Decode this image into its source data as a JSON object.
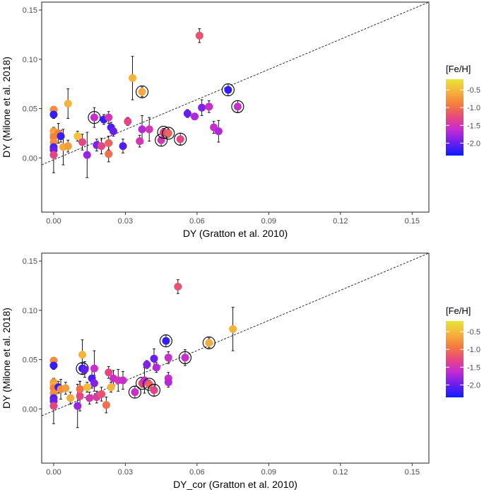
{
  "colors": {
    "panel_border": "#333333",
    "tick": "#333333",
    "refline": "#000000",
    "errbar": "#000000",
    "ring": "#000000"
  },
  "colorbar": {
    "stops": [
      "#0d1cff",
      "#6a1fee",
      "#c42bd3",
      "#e6487f",
      "#f47b3e",
      "#f6b23c",
      "#e6e635"
    ]
  },
  "chart_data": [
    {
      "type": "scatter",
      "xlabel": "DY (Gratton et al. 2010)",
      "ylabel": "DY (Milone et al. 2018)",
      "xlim": [
        -0.005,
        0.157
      ],
      "ylim": [
        -0.055,
        0.158
      ],
      "xticks": [
        0.0,
        0.03,
        0.06,
        0.09,
        0.12,
        0.15
      ],
      "xtick_labels": [
        "0.00",
        "0.03",
        "0.06",
        "0.09",
        "0.12",
        "0.15"
      ],
      "yticks": [
        0.0,
        0.05,
        0.1,
        0.15
      ],
      "ytick_labels": [
        "0.00",
        "0.05",
        "0.10",
        "0.15"
      ],
      "reference_line": {
        "x": [
          -0.005,
          0.157
        ],
        "y": [
          -0.007,
          0.158
        ],
        "style": "dashed"
      },
      "legend": {
        "title": "[Fe/H]",
        "labels": [
          "-0.5",
          "-1.0",
          "-1.5",
          "-2.0"
        ],
        "values": [
          -0.5,
          -1.0,
          -1.5,
          -2.0
        ],
        "range": [
          -2.35,
          -0.2
        ]
      },
      "points": [
        {
          "x": 0.0,
          "y": 0.049,
          "err": 0.003,
          "fe": -0.8
        },
        {
          "x": 0.0,
          "y": 0.044,
          "err": 0.004,
          "fe": -2.2
        },
        {
          "x": 0.0,
          "y": 0.027,
          "err": 0.004,
          "fe": -0.7
        },
        {
          "x": 0.0,
          "y": 0.024,
          "err": 0.004,
          "fe": -0.6
        },
        {
          "x": 0.0,
          "y": 0.021,
          "err": 0.003,
          "fe": -0.9
        },
        {
          "x": 0.0,
          "y": 0.016,
          "err": 0.004,
          "fe": -0.8
        },
        {
          "x": 0.0,
          "y": 0.011,
          "err": 0.005,
          "fe": -2.1
        },
        {
          "x": 0.0,
          "y": 0.008,
          "err": 0.004,
          "fe": -2.0
        },
        {
          "x": 0.0,
          "y": 0.003,
          "err": 0.018,
          "fe": -1.3
        },
        {
          "x": 0.002,
          "y": 0.025,
          "err": 0.01,
          "fe": -0.9
        },
        {
          "x": 0.003,
          "y": 0.022,
          "err": 0.006,
          "fe": -2.2
        },
        {
          "x": 0.004,
          "y": 0.011,
          "err": 0.018,
          "fe": -0.6
        },
        {
          "x": 0.006,
          "y": 0.055,
          "err": 0.015,
          "fe": -0.55
        },
        {
          "x": 0.006,
          "y": 0.012,
          "err": 0.006,
          "fe": -0.7
        },
        {
          "x": 0.01,
          "y": 0.022,
          "err": 0.005,
          "fe": -0.45
        },
        {
          "x": 0.012,
          "y": 0.016,
          "err": 0.008,
          "fe": -1.3
        },
        {
          "x": 0.014,
          "y": 0.003,
          "err": 0.023,
          "fe": -1.8
        },
        {
          "x": 0.017,
          "y": 0.041,
          "err": 0.01,
          "fe": -1.6,
          "ring": true
        },
        {
          "x": 0.018,
          "y": 0.013,
          "err": 0.006,
          "fe": -1.9
        },
        {
          "x": 0.02,
          "y": 0.012,
          "err": 0.008,
          "fe": -1.3
        },
        {
          "x": 0.021,
          "y": 0.039,
          "err": 0.005,
          "fe": -2.2
        },
        {
          "x": 0.023,
          "y": 0.041,
          "err": 0.006,
          "fe": -1.5
        },
        {
          "x": 0.023,
          "y": 0.015,
          "err": 0.007,
          "fe": -1.1
        },
        {
          "x": 0.023,
          "y": 0.004,
          "err": 0.008,
          "fe": -1.0
        },
        {
          "x": 0.024,
          "y": 0.031,
          "err": 0.005,
          "fe": -2.1
        },
        {
          "x": 0.025,
          "y": 0.027,
          "err": 0.005,
          "fe": -2.0
        },
        {
          "x": 0.029,
          "y": 0.012,
          "err": 0.007,
          "fe": -2.1
        },
        {
          "x": 0.031,
          "y": 0.037,
          "err": 0.004,
          "fe": -1.3
        },
        {
          "x": 0.033,
          "y": 0.081,
          "err": 0.022,
          "fe": -0.55
        },
        {
          "x": 0.036,
          "y": 0.017,
          "err": 0.006,
          "fe": -1.5
        },
        {
          "x": 0.037,
          "y": 0.029,
          "err": 0.014,
          "fe": -1.7
        },
        {
          "x": 0.037,
          "y": 0.067,
          "err": 0.005,
          "fe": -0.6,
          "ring": true
        },
        {
          "x": 0.04,
          "y": 0.029,
          "err": 0.012,
          "fe": -1.5
        },
        {
          "x": 0.045,
          "y": 0.018,
          "err": 0.006,
          "fe": -1.5,
          "ring": true
        },
        {
          "x": 0.046,
          "y": 0.026,
          "err": 0.004,
          "fe": -1.3,
          "ring": true
        },
        {
          "x": 0.048,
          "y": 0.025,
          "err": 0.004,
          "fe": -1.1,
          "ring": true
        },
        {
          "x": 0.053,
          "y": 0.019,
          "err": 0.006,
          "fe": -1.3,
          "ring": true
        },
        {
          "x": 0.056,
          "y": 0.045,
          "err": 0.004,
          "fe": -2.0
        },
        {
          "x": 0.059,
          "y": 0.042,
          "err": 0.003,
          "fe": -1.7
        },
        {
          "x": 0.061,
          "y": 0.124,
          "err": 0.007,
          "fe": -1.2
        },
        {
          "x": 0.062,
          "y": 0.051,
          "err": 0.008,
          "fe": -1.9
        },
        {
          "x": 0.065,
          "y": 0.052,
          "err": 0.006,
          "fe": -1.6
        },
        {
          "x": 0.067,
          "y": 0.031,
          "err": 0.006,
          "fe": -1.6
        },
        {
          "x": 0.069,
          "y": 0.027,
          "err": 0.011,
          "fe": -1.7
        },
        {
          "x": 0.073,
          "y": 0.069,
          "err": 0.006,
          "fe": -2.2,
          "ring": true
        },
        {
          "x": 0.077,
          "y": 0.052,
          "err": 0.006,
          "fe": -1.6,
          "ring": true
        }
      ]
    },
    {
      "type": "scatter",
      "xlabel": "DY_cor (Gratton et al. 2010)",
      "ylabel": "DY (Milone et al. 2018)",
      "xlim": [
        -0.005,
        0.157
      ],
      "ylim": [
        -0.055,
        0.158
      ],
      "xticks": [
        0.0,
        0.03,
        0.06,
        0.09,
        0.12,
        0.15
      ],
      "xtick_labels": [
        "0.00",
        "0.03",
        "0.06",
        "0.09",
        "0.12",
        "0.15"
      ],
      "yticks": [
        0.0,
        0.05,
        0.1,
        0.15
      ],
      "ytick_labels": [
        "0.00",
        "0.05",
        "0.10",
        "0.15"
      ],
      "reference_line": {
        "x": [
          -0.005,
          0.157
        ],
        "y": [
          -0.007,
          0.158
        ],
        "style": "dashed"
      },
      "legend": {
        "title": "[Fe/H]",
        "labels": [
          "-0.5",
          "-1.0",
          "-1.5",
          "-2.0"
        ],
        "values": [
          -0.5,
          -1.0,
          -1.5,
          -2.0
        ],
        "range": [
          -2.35,
          -0.2
        ]
      },
      "points": [
        {
          "x": 0.0,
          "y": 0.049,
          "err": 0.003,
          "fe": -0.8
        },
        {
          "x": 0.0,
          "y": 0.044,
          "err": 0.004,
          "fe": -2.2
        },
        {
          "x": 0.0,
          "y": 0.027,
          "err": 0.004,
          "fe": -0.7
        },
        {
          "x": 0.0,
          "y": 0.024,
          "err": 0.004,
          "fe": -0.6
        },
        {
          "x": 0.0,
          "y": 0.021,
          "err": 0.003,
          "fe": -0.9
        },
        {
          "x": 0.0,
          "y": 0.016,
          "err": 0.004,
          "fe": -0.8
        },
        {
          "x": 0.0,
          "y": 0.011,
          "err": 0.005,
          "fe": -2.1
        },
        {
          "x": 0.0,
          "y": 0.008,
          "err": 0.004,
          "fe": -2.0
        },
        {
          "x": 0.0,
          "y": 0.003,
          "err": 0.018,
          "fe": -1.3
        },
        {
          "x": 0.002,
          "y": 0.022,
          "err": 0.006,
          "fe": -2.2
        },
        {
          "x": 0.003,
          "y": 0.02,
          "err": 0.01,
          "fe": -0.8
        },
        {
          "x": 0.005,
          "y": 0.021,
          "err": 0.006,
          "fe": -0.7
        },
        {
          "x": 0.007,
          "y": 0.011,
          "err": 0.006,
          "fe": -0.6
        },
        {
          "x": 0.01,
          "y": 0.003,
          "err": 0.022,
          "fe": -1.8
        },
        {
          "x": 0.011,
          "y": 0.013,
          "err": 0.015,
          "fe": -1.3
        },
        {
          "x": 0.011,
          "y": 0.02,
          "err": 0.008,
          "fe": -1.0
        },
        {
          "x": 0.012,
          "y": 0.041,
          "err": 0.005,
          "fe": -2.2,
          "ring": true
        },
        {
          "x": 0.012,
          "y": 0.055,
          "err": 0.015,
          "fe": -0.55
        },
        {
          "x": 0.013,
          "y": 0.04,
          "err": 0.008,
          "fe": -2.0
        },
        {
          "x": 0.014,
          "y": 0.022,
          "err": 0.005,
          "fe": -0.5
        },
        {
          "x": 0.015,
          "y": 0.011,
          "err": 0.006,
          "fe": -1.5
        },
        {
          "x": 0.016,
          "y": 0.031,
          "err": 0.01,
          "fe": -2.1
        },
        {
          "x": 0.017,
          "y": 0.041,
          "err": 0.018,
          "fe": -1.6
        },
        {
          "x": 0.017,
          "y": 0.026,
          "err": 0.008,
          "fe": -1.9
        },
        {
          "x": 0.018,
          "y": 0.012,
          "err": 0.006,
          "fe": -1.4
        },
        {
          "x": 0.02,
          "y": 0.015,
          "err": 0.007,
          "fe": -1.2
        },
        {
          "x": 0.022,
          "y": 0.004,
          "err": 0.008,
          "fe": -1.0
        },
        {
          "x": 0.023,
          "y": 0.037,
          "err": 0.006,
          "fe": -1.3
        },
        {
          "x": 0.024,
          "y": 0.022,
          "err": 0.005,
          "fe": -0.55
        },
        {
          "x": 0.025,
          "y": 0.031,
          "err": 0.008,
          "fe": -1.6
        },
        {
          "x": 0.027,
          "y": 0.029,
          "err": 0.011,
          "fe": -1.5
        },
        {
          "x": 0.029,
          "y": 0.029,
          "err": 0.009,
          "fe": -1.6
        },
        {
          "x": 0.034,
          "y": 0.017,
          "err": 0.006,
          "fe": -1.6,
          "ring": true
        },
        {
          "x": 0.037,
          "y": 0.026,
          "err": 0.004,
          "fe": -1.3,
          "ring": true
        },
        {
          "x": 0.038,
          "y": 0.029,
          "err": 0.013,
          "fe": -1.6
        },
        {
          "x": 0.039,
          "y": 0.045,
          "err": 0.004,
          "fe": -1.9
        },
        {
          "x": 0.04,
          "y": 0.025,
          "err": 0.004,
          "fe": -1.1,
          "ring": true
        },
        {
          "x": 0.042,
          "y": 0.019,
          "err": 0.006,
          "fe": -1.3,
          "ring": true
        },
        {
          "x": 0.042,
          "y": 0.051,
          "err": 0.01,
          "fe": -2.0
        },
        {
          "x": 0.043,
          "y": 0.042,
          "err": 0.005,
          "fe": -1.7
        },
        {
          "x": 0.047,
          "y": 0.069,
          "err": 0.006,
          "fe": -2.2,
          "ring": true
        },
        {
          "x": 0.048,
          "y": 0.052,
          "err": 0.006,
          "fe": -1.6
        },
        {
          "x": 0.048,
          "y": 0.031,
          "err": 0.006,
          "fe": -1.6
        },
        {
          "x": 0.048,
          "y": 0.027,
          "err": 0.005,
          "fe": -1.7
        },
        {
          "x": 0.052,
          "y": 0.124,
          "err": 0.007,
          "fe": -1.2
        },
        {
          "x": 0.055,
          "y": 0.052,
          "err": 0.008,
          "fe": -1.6,
          "ring": true
        },
        {
          "x": 0.065,
          "y": 0.067,
          "err": 0.005,
          "fe": -0.6,
          "ring": true
        },
        {
          "x": 0.075,
          "y": 0.081,
          "err": 0.022,
          "fe": -0.55
        }
      ]
    }
  ]
}
